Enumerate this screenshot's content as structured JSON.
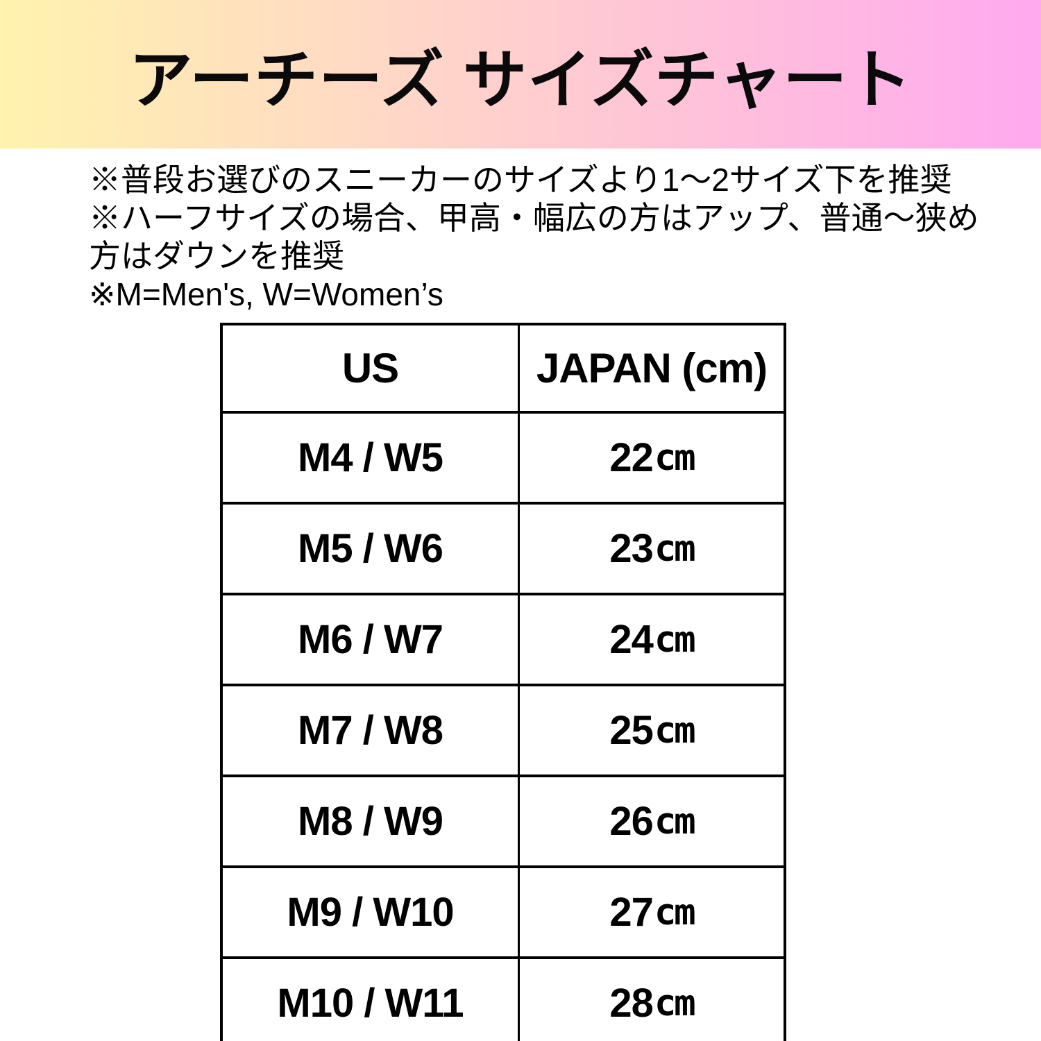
{
  "header": {
    "title": "アーチーズ サイズチャート",
    "gradient_left": "#FFF3AE",
    "gradient_right": "#FFA9EF"
  },
  "notes": {
    "lines": [
      "※普段お選びのスニーカーのサイズより1〜2サイズ下を推奨",
      "※ハーフサイズの場合、甲高・幅広の方はアップ、普通〜狭め",
      "方はダウンを推奨",
      "※M=Men's, W=Women’s"
    ]
  },
  "chart_data": {
    "type": "table",
    "title": "アーチーズ サイズチャート",
    "columns": [
      "US",
      "JAPAN (cm)"
    ],
    "rows": [
      {
        "us": "M4 / W5",
        "value": "22",
        "unit": "cm"
      },
      {
        "us": "M5 / W6",
        "value": "23",
        "unit": "cm"
      },
      {
        "us": "M6 / W7",
        "value": "24",
        "unit": "cm"
      },
      {
        "us": "M7 / W8",
        "value": "25",
        "unit": "cm"
      },
      {
        "us": "M8 / W9",
        "value": "26",
        "unit": "cm"
      },
      {
        "us": "M9 / W10",
        "value": "27",
        "unit": "cm"
      },
      {
        "us": "M10 / W11",
        "value": "28",
        "unit": "cm"
      }
    ]
  }
}
